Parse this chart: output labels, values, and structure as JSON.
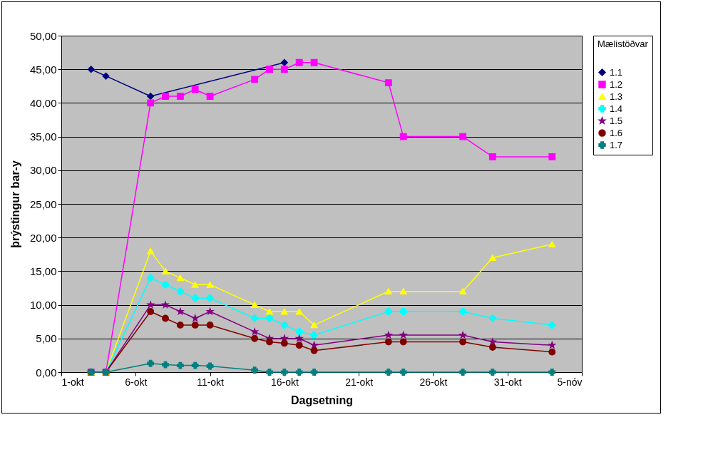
{
  "chart_data": {
    "type": "line",
    "xlabel": "Dagsetning",
    "ylabel": "þrýstingur bar-y",
    "legend_title": "Mælistöðvar",
    "legend": "right",
    "grid": "y",
    "x": [
      "--10-03",
      "--10-04",
      "--10-07",
      "--10-08",
      "--10-09",
      "--10-10",
      "--10-11",
      "--10-14",
      "--10-15",
      "--10-16",
      "--10-17",
      "--10-18",
      "--10-23",
      "--10-24",
      "--10-28",
      "--10-30",
      "--11-03"
    ],
    "xlim": [
      "--10-01",
      "--11-05"
    ],
    "xticks": [
      {
        "value": "--10-01",
        "label": "1-okt"
      },
      {
        "value": "--10-06",
        "label": "6-okt"
      },
      {
        "value": "--10-11",
        "label": "11-okt"
      },
      {
        "value": "--10-16",
        "label": "16-okt"
      },
      {
        "value": "--10-21",
        "label": "21-okt"
      },
      {
        "value": "--10-26",
        "label": "26-okt"
      },
      {
        "value": "--10-31",
        "label": "31-okt"
      },
      {
        "value": "--11-05",
        "label": "5-nóv"
      }
    ],
    "ylim": [
      0,
      50
    ],
    "yticks": [
      {
        "value": 0,
        "label": "0,00"
      },
      {
        "value": 5,
        "label": "5,00"
      },
      {
        "value": 10,
        "label": "10,00"
      },
      {
        "value": 15,
        "label": "15,00"
      },
      {
        "value": 20,
        "label": "20,00"
      },
      {
        "value": 25,
        "label": "25,00"
      },
      {
        "value": 30,
        "label": "30,00"
      },
      {
        "value": 35,
        "label": "35,00"
      },
      {
        "value": 40,
        "label": "40,00"
      },
      {
        "value": 45,
        "label": "45,00"
      },
      {
        "value": 50,
        "label": "50,00"
      }
    ],
    "series": [
      {
        "name": "1.1",
        "color": "#000080",
        "marker": "diamond",
        "values": [
          45,
          44,
          41,
          null,
          null,
          null,
          null,
          null,
          null,
          46,
          null,
          null,
          null,
          null,
          null,
          null,
          null
        ]
      },
      {
        "name": "1.2",
        "color": "#ff00ff",
        "marker": "square",
        "values": [
          0,
          0,
          40,
          41,
          41,
          42,
          41,
          43.5,
          45,
          45,
          46,
          46,
          43,
          35,
          35,
          32,
          32
        ]
      },
      {
        "name": "1.3",
        "color": "#ffff00",
        "marker": "triangle",
        "values": [
          0,
          0,
          18,
          15,
          14,
          13,
          13,
          10,
          9,
          9,
          9,
          7,
          12,
          12,
          12,
          17,
          19
        ]
      },
      {
        "name": "1.4",
        "color": "#00ffff",
        "marker": "cross",
        "values": [
          0,
          0,
          14,
          13,
          12,
          11,
          11,
          8,
          8,
          7,
          6,
          5.5,
          9,
          9,
          9,
          8,
          7
        ]
      },
      {
        "name": "1.5",
        "color": "#800080",
        "marker": "star",
        "values": [
          0,
          0,
          10,
          10,
          9,
          8,
          9,
          6,
          5,
          5,
          5,
          4,
          5.5,
          5.5,
          5.5,
          4.5,
          4
        ]
      },
      {
        "name": "1.6",
        "color": "#800000",
        "marker": "circle",
        "values": [
          0,
          0,
          9,
          8,
          7,
          7,
          7,
          5,
          4.5,
          4.3,
          4,
          3.2,
          4.5,
          4.5,
          4.5,
          3.7,
          3
        ]
      },
      {
        "name": "1.7",
        "color": "#008080",
        "marker": "plus",
        "values": [
          0,
          0,
          1.3,
          1.1,
          1,
          1,
          0.9,
          0.3,
          0,
          0,
          0,
          0,
          0,
          0,
          0,
          0,
          0
        ]
      }
    ]
  }
}
